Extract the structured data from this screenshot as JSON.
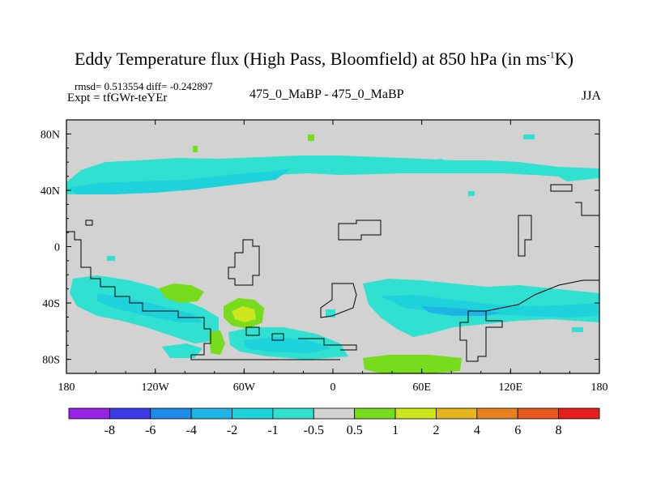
{
  "title": {
    "main": "Eddy Temperature flux (High Pass, Bloomfield) at 850 hPa (in ms",
    "superscript": "-1",
    "unit_tail": "K)"
  },
  "subtitle": {
    "stats": "rmsd= 0.513554 diff= -0.242897",
    "expt": "Expt = tfGWr-teYEr",
    "experiment": "475_0_MaBP - 475_0_MaBP",
    "season": "JJA"
  },
  "map": {
    "projection": "cylindrical equidistant",
    "lon_range": [
      -180,
      180
    ],
    "lat_range": [
      -90,
      90
    ],
    "x_ticks": [
      {
        "value": -180,
        "label": "180"
      },
      {
        "value": -120,
        "label": "120W"
      },
      {
        "value": -60,
        "label": "60W"
      },
      {
        "value": 0,
        "label": "0"
      },
      {
        "value": 60,
        "label": "60E"
      },
      {
        "value": 120,
        "label": "120E"
      },
      {
        "value": 180,
        "label": "180"
      }
    ],
    "y_ticks": [
      {
        "value": 80,
        "label": "80N"
      },
      {
        "value": 40,
        "label": "40N"
      },
      {
        "value": 0,
        "label": "0"
      },
      {
        "value": -40,
        "label": "40S"
      },
      {
        "value": -80,
        "label": "80S"
      }
    ]
  },
  "colorbar": {
    "labels": [
      "-8",
      "-6",
      "-4",
      "-2",
      "-1",
      "-0.5",
      "0.5",
      "1",
      "2",
      "4",
      "6",
      "8"
    ],
    "colors": [
      "#9a22e6",
      "#3c3ce6",
      "#1e8ce6",
      "#1eb4e6",
      "#1ed2dc",
      "#30e0d0",
      "#d2d2d2",
      "#78dc1e",
      "#cde61e",
      "#e6b41e",
      "#e6821e",
      "#e65a1e",
      "#e61e1e"
    ]
  },
  "colors": {
    "background_field": "#d2d2d2",
    "neg_light": "#30e0d0",
    "neg_mid": "#1ed2dc",
    "neg_strong": "#1eb4e6",
    "pos_light": "#78dc1e",
    "pos_mid": "#cde61e"
  }
}
